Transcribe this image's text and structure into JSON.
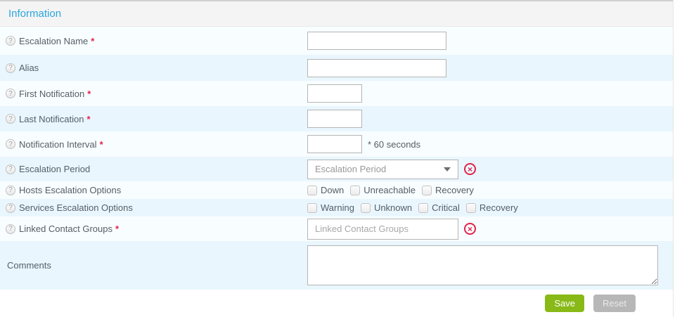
{
  "section": {
    "title": "Information"
  },
  "icons": {
    "help": "?",
    "clear": "×"
  },
  "form": {
    "required_marker": "*",
    "fields": [
      {
        "label": "Escalation Name",
        "required": true,
        "type": "text",
        "value": ""
      },
      {
        "label": "Alias",
        "required": false,
        "type": "text",
        "value": ""
      },
      {
        "label": "First Notification",
        "required": true,
        "type": "text-small",
        "value": ""
      },
      {
        "label": "Last Notification",
        "required": true,
        "type": "text-small",
        "value": ""
      },
      {
        "label": "Notification Interval",
        "required": true,
        "type": "text-small",
        "value": "",
        "suffix": "* 60 seconds"
      },
      {
        "label": "Escalation Period",
        "required": false,
        "type": "select",
        "placeholder": "Escalation Period"
      },
      {
        "label": "Hosts Escalation Options",
        "required": false,
        "type": "checkbox-group",
        "options": [
          "Down",
          "Unreachable",
          "Recovery"
        ]
      },
      {
        "label": "Services Escalation Options",
        "required": false,
        "type": "checkbox-group",
        "options": [
          "Warning",
          "Unknown",
          "Critical",
          "Recovery"
        ]
      },
      {
        "label": "Linked Contact Groups",
        "required": true,
        "type": "autocomplete",
        "placeholder": "Linked Contact Groups",
        "value": ""
      },
      {
        "label": "Comments",
        "required": false,
        "type": "textarea",
        "value": ""
      }
    ]
  },
  "footer": {
    "save_label": "Save",
    "reset_label": "Reset"
  },
  "colors": {
    "section_title": "#2aa6dc",
    "row_odd": "#f8fdff",
    "row_even": "#e9f6fd",
    "required": "#e0244c",
    "save_button": "#88b917",
    "reset_button": "#b7b7b7"
  }
}
